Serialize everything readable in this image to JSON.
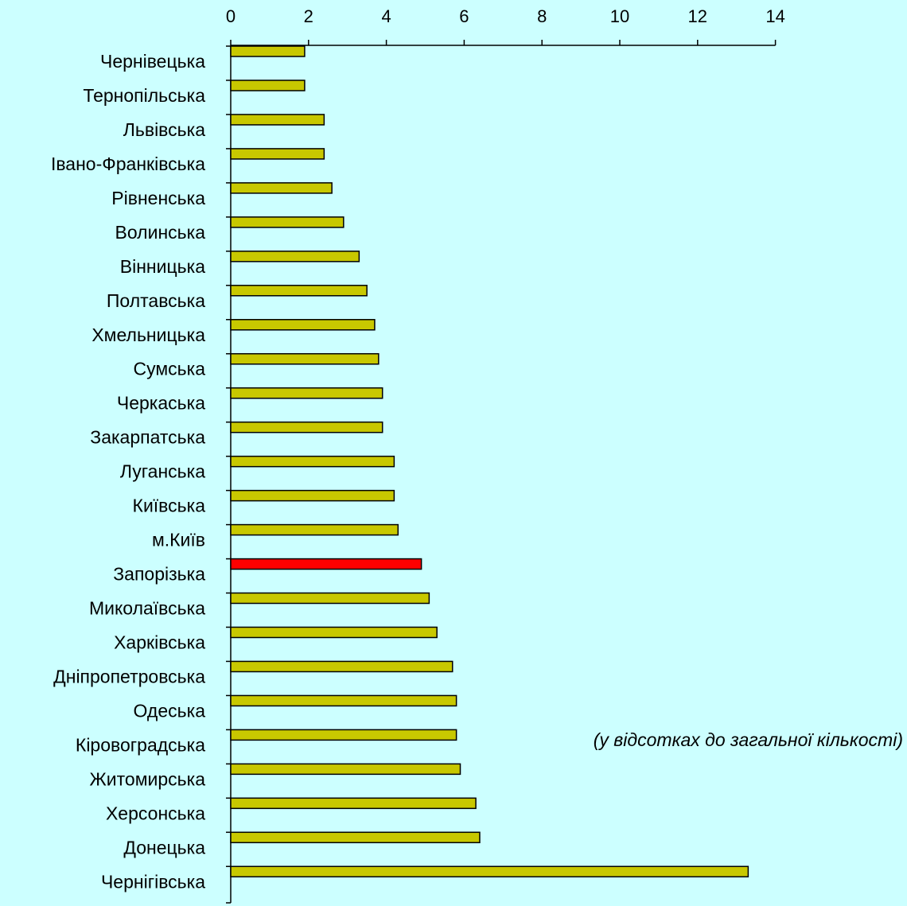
{
  "chart_data": {
    "type": "bar",
    "orientation": "horizontal",
    "title": "",
    "xlabel": "",
    "ylabel": "",
    "annotation": "(у відсотках до загальної кількості)",
    "xlim": [
      0,
      14
    ],
    "x_ticks": [
      "0",
      "2",
      "4",
      "6",
      "8",
      "10",
      "12",
      "14"
    ],
    "grid": false,
    "x_axis_position": "top",
    "categories": [
      "Чернівецька",
      "Тернопільська",
      "Львівська",
      "Івано-Франківська",
      "Рівненська",
      "Волинська",
      "Вінницька",
      "Полтавська",
      "Хмельницька",
      "Сумська",
      "Черкаська",
      "Закарпатська",
      "Луганська",
      "Київська",
      "м.Київ",
      "Запорізька",
      "Миколаївська",
      "Харківська",
      "Дніпропетровська",
      "Одеська",
      "Кіровоградська",
      "Житомирська",
      "Херсонська",
      "Донецька",
      "Чернігівська"
    ],
    "values": [
      1.9,
      1.9,
      2.4,
      2.4,
      2.6,
      2.9,
      3.3,
      3.5,
      3.7,
      3.8,
      3.9,
      3.9,
      4.2,
      4.2,
      4.3,
      4.9,
      5.1,
      5.3,
      5.7,
      5.8,
      5.8,
      5.9,
      6.3,
      6.4,
      13.3
    ],
    "colors": {
      "bar": "#c8c800",
      "highlight": "#ff0000",
      "background": "#ccffff"
    },
    "highlight_category": "Запорізька"
  }
}
